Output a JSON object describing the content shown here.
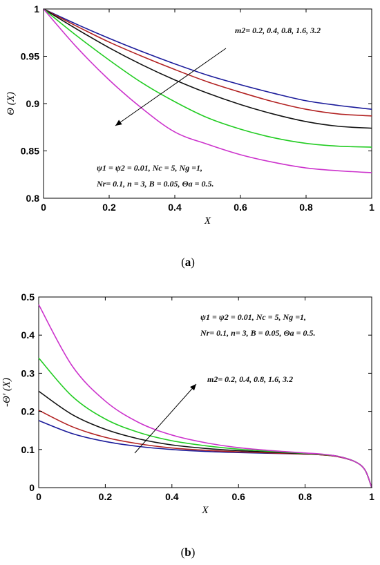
{
  "chart_data": [
    {
      "type": "line",
      "panel_label": "a",
      "xlabel": "X",
      "ylabel": "Θ (X)",
      "xlim": [
        0,
        1
      ],
      "ylim": [
        0.8,
        1
      ],
      "xticks": [
        "0",
        "0.2",
        "0.4",
        "0.6",
        "0.8",
        "1"
      ],
      "yticks": [
        "0.8",
        "0.85",
        "0.9",
        "0.95",
        "1"
      ],
      "grid": false,
      "annotation_param": "m2= 0.2, 0.4, 0.8, 1.6, 3.2",
      "annotation_line1": "ψ1 = ψ2 = 0.01, Nc = 5, Ng =1,",
      "annotation_line2": "Nr= 0.1, n = 3, B = 0.05, Θa = 0.5.",
      "x": [
        0,
        0.1,
        0.2,
        0.3,
        0.4,
        0.5,
        0.6,
        0.7,
        0.8,
        0.9,
        1.0
      ],
      "series": [
        {
          "color": "#1a1a9a",
          "values": [
            1.0,
            0.984,
            0.969,
            0.955,
            0.942,
            0.93,
            0.92,
            0.911,
            0.903,
            0.898,
            0.894
          ]
        },
        {
          "color": "#b22222",
          "values": [
            1.0,
            0.982,
            0.965,
            0.95,
            0.936,
            0.923,
            0.912,
            0.902,
            0.894,
            0.889,
            0.887
          ]
        },
        {
          "color": "#111111",
          "values": [
            1.0,
            0.979,
            0.959,
            0.941,
            0.925,
            0.911,
            0.899,
            0.889,
            0.881,
            0.876,
            0.874
          ]
        },
        {
          "color": "#22cc22",
          "values": [
            1.0,
            0.972,
            0.946,
            0.922,
            0.902,
            0.885,
            0.873,
            0.864,
            0.858,
            0.855,
            0.854
          ]
        },
        {
          "color": "#cc33cc",
          "values": [
            1.0,
            0.96,
            0.925,
            0.895,
            0.87,
            0.857,
            0.846,
            0.838,
            0.832,
            0.829,
            0.827
          ]
        }
      ]
    },
    {
      "type": "line",
      "panel_label": "b",
      "xlabel": "X",
      "ylabel": "-Θ′ (X)",
      "xlim": [
        0,
        1
      ],
      "ylim": [
        0,
        0.5
      ],
      "xticks": [
        "0",
        "0.2",
        "0.4",
        "0.6",
        "0.8",
        "1"
      ],
      "yticks": [
        "0",
        "0.1",
        "0.2",
        "0.3",
        "0.4",
        "0.5"
      ],
      "grid": false,
      "annotation_param": "m2= 0.2, 0.4, 0.8, 1.6, 3.2",
      "annotation_line1": "ψ1 = ψ2 = 0.01, Nc = 5, Ng =1,",
      "annotation_line2": "Nr= 0.1, n= 3, B = 0.05, Θa = 0.5.",
      "x": [
        0,
        0.1,
        0.2,
        0.3,
        0.4,
        0.5,
        0.6,
        0.7,
        0.8,
        0.85,
        0.9,
        0.95,
        0.98,
        1.0
      ],
      "series": [
        {
          "color": "#1a1a9a",
          "values": [
            0.176,
            0.142,
            0.121,
            0.108,
            0.1,
            0.095,
            0.092,
            0.09,
            0.088,
            0.086,
            0.081,
            0.068,
            0.046,
            0.0
          ]
        },
        {
          "color": "#b22222",
          "values": [
            0.203,
            0.16,
            0.132,
            0.115,
            0.104,
            0.098,
            0.094,
            0.091,
            0.088,
            0.086,
            0.081,
            0.068,
            0.046,
            0.0
          ]
        },
        {
          "color": "#111111",
          "values": [
            0.253,
            0.192,
            0.153,
            0.128,
            0.112,
            0.103,
            0.097,
            0.093,
            0.089,
            0.087,
            0.082,
            0.068,
            0.046,
            0.0
          ]
        },
        {
          "color": "#22cc22",
          "values": [
            0.34,
            0.24,
            0.18,
            0.145,
            0.123,
            0.11,
            0.101,
            0.095,
            0.09,
            0.087,
            0.082,
            0.068,
            0.046,
            0.0
          ]
        },
        {
          "color": "#cc33cc",
          "values": [
            0.48,
            0.32,
            0.227,
            0.171,
            0.138,
            0.118,
            0.105,
            0.097,
            0.091,
            0.088,
            0.082,
            0.068,
            0.046,
            0.0
          ]
        }
      ]
    }
  ],
  "captions": [
    {
      "open": "(",
      "letter": "a",
      "close": ")"
    },
    {
      "open": "(",
      "letter": "b",
      "close": ")"
    }
  ]
}
